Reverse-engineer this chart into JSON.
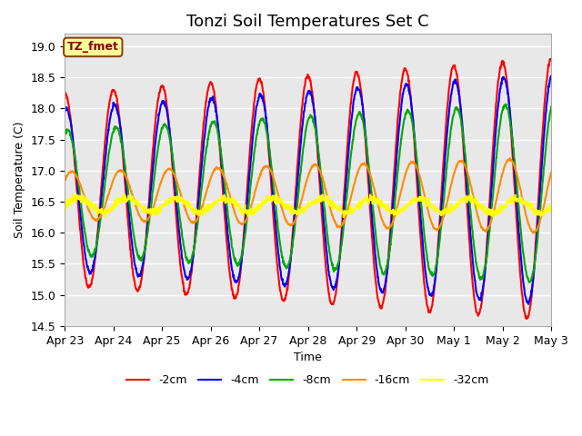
{
  "title": "Tonzi Soil Temperatures Set C",
  "xlabel": "Time",
  "ylabel": "Soil Temperature (C)",
  "ylim": [
    14.5,
    19.2
  ],
  "colors": {
    "-2cm": "#FF0000",
    "-4cm": "#0000FF",
    "-8cm": "#00AA00",
    "-16cm": "#FF8C00",
    "-32cm": "#FFFF00"
  },
  "x_tick_labels": [
    "Apr 23",
    "Apr 24",
    "Apr 25",
    "Apr 26",
    "Apr 27",
    "Apr 28",
    "Apr 29",
    "Apr 30",
    "May 1",
    "May 2",
    "May 3"
  ],
  "x_tick_positions": [
    0,
    1,
    2,
    3,
    4,
    5,
    6,
    7,
    8,
    9,
    10
  ],
  "line_width": 1.5,
  "annotation_text": "TZ_fmet",
  "annotation_bg": "#FFFF99",
  "annotation_border": "#8B4513",
  "annotation_text_color": "#8B0000",
  "title_fontsize": 13,
  "figsize": [
    6.4,
    4.8
  ],
  "dpi": 100,
  "yticks": [
    14.5,
    15.0,
    15.5,
    16.0,
    16.5,
    17.0,
    17.5,
    18.0,
    18.5,
    19.0
  ]
}
